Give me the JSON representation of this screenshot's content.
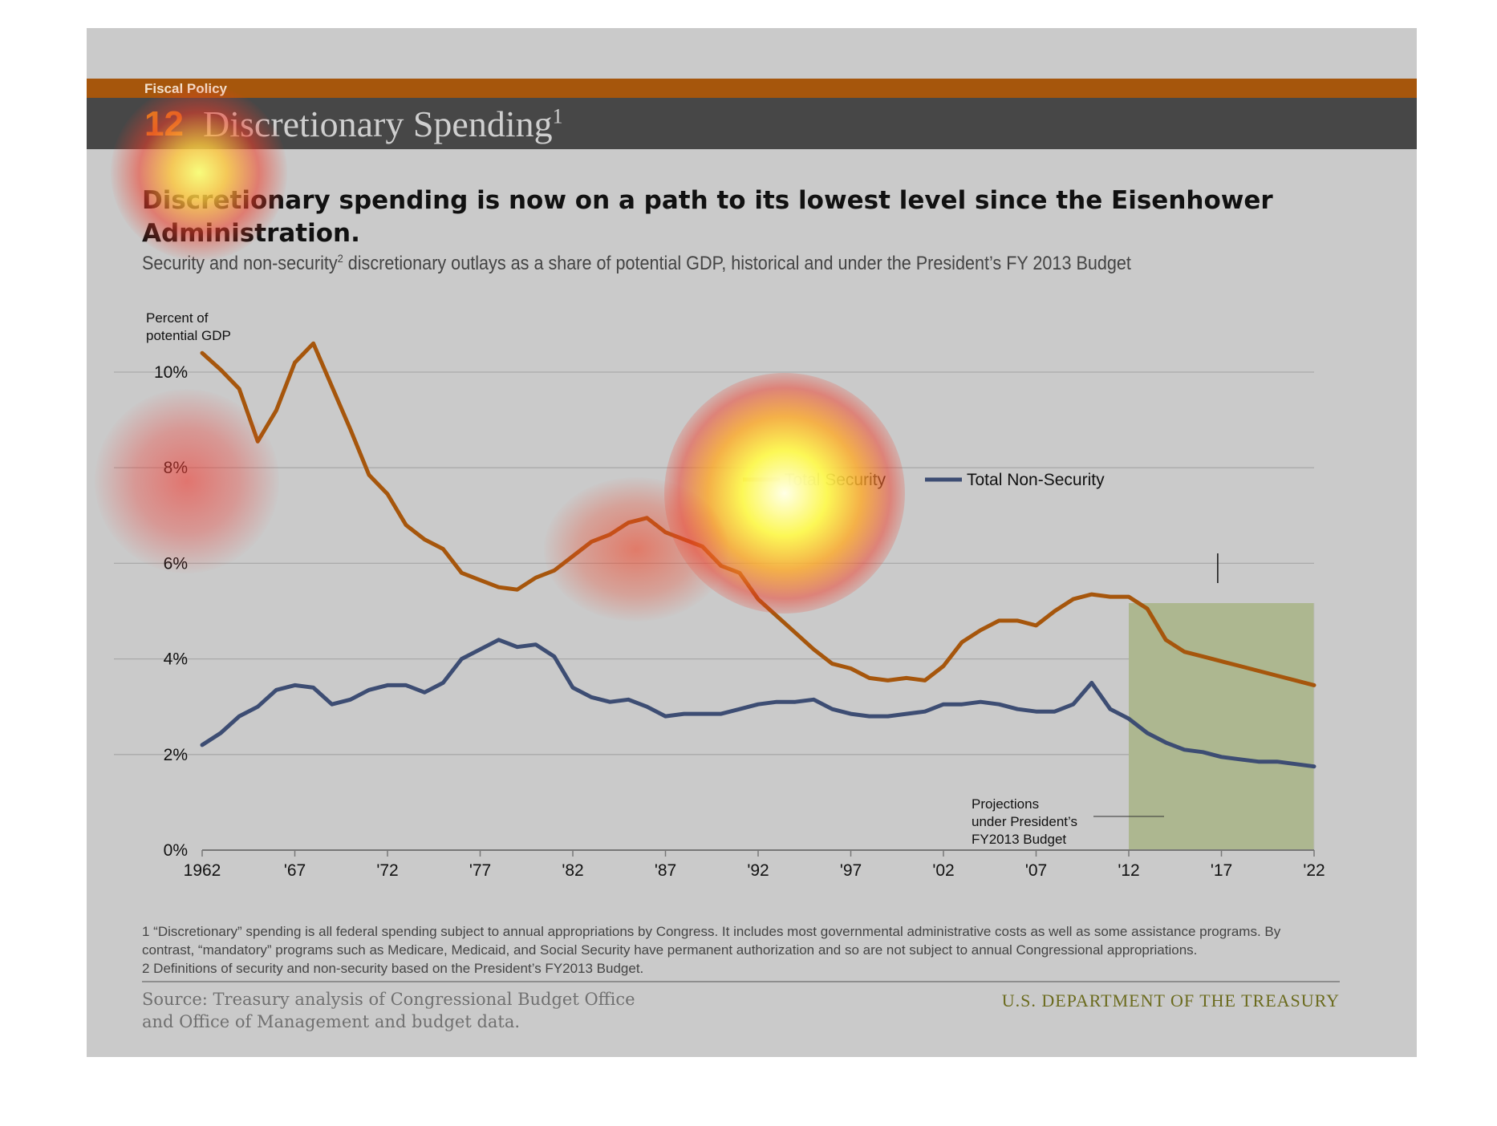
{
  "header": {
    "section": "Fiscal Policy",
    "chapter_number": "12",
    "chapter_title": "Discretionary Spending",
    "chapter_superscript": "1"
  },
  "headline": "Discretionary spending is now on a path to its lowest level since the Eisenhower Administration.",
  "subtitle": {
    "part1": "Security and non-security",
    "sup": "2",
    "part2": " discretionary outlays as a share of potential GDP, historical and under the President’s FY 2013 Budget"
  },
  "footnotes": {
    "line1": "1 “Discretionary” spending is all federal spending subject to annual appropriations by Congress. It includes most governmental administrative costs as well as some assistance programs. By",
    "line2": "contrast, “mandatory” programs such as Medicare, Medicaid, and Social Security have permanent authorization and so are not subject to annual Congressional appropriations.",
    "line3": "2 Definitions of security and non-security based on the President’s FY2013 Budget."
  },
  "source": {
    "line1": "Source: Treasury analysis of Congressional Budget Office",
    "line2": "and Office of Management and budget data."
  },
  "agency": "U.S. DEPARTMENT OF THE TREASURY",
  "colors": {
    "security": "#a6560c",
    "non_security": "#3d4d73",
    "projection_shade": "#adb790"
  },
  "chart_data": {
    "type": "line",
    "ylabel": "Percent of potential GDP",
    "ylabel_lines": [
      "Percent of",
      "potential GDP"
    ],
    "ylim": [
      0,
      11
    ],
    "xlim": [
      1962,
      2022
    ],
    "grid": true,
    "y_ticks": [
      {
        "value": 0,
        "label": "0%"
      },
      {
        "value": 2,
        "label": "2%"
      },
      {
        "value": 4,
        "label": "4%"
      },
      {
        "value": 6,
        "label": "6%"
      },
      {
        "value": 8,
        "label": "8%"
      },
      {
        "value": 10,
        "label": "10%"
      }
    ],
    "x_ticks": [
      {
        "value": 1962,
        "label": "1962"
      },
      {
        "value": 1967,
        "label": "'67"
      },
      {
        "value": 1972,
        "label": "'72"
      },
      {
        "value": 1977,
        "label": "'77"
      },
      {
        "value": 1982,
        "label": "'82"
      },
      {
        "value": 1987,
        "label": "'87"
      },
      {
        "value": 1992,
        "label": "'92"
      },
      {
        "value": 1997,
        "label": "'97"
      },
      {
        "value": 2002,
        "label": "'02"
      },
      {
        "value": 2007,
        "label": "'07"
      },
      {
        "value": 2012,
        "label": "'12"
      },
      {
        "value": 2017,
        "label": "'17"
      },
      {
        "value": 2022,
        "label": "'22"
      }
    ],
    "legend_placement": "upper-center",
    "projection": {
      "start": 2012,
      "end": 2022,
      "label_lines": [
        "Projections",
        "under President’s",
        "FY2013 Budget"
      ]
    },
    "x": [
      1962,
      1963,
      1964,
      1965,
      1966,
      1967,
      1968,
      1969,
      1970,
      1971,
      1972,
      1973,
      1974,
      1975,
      1976,
      1977,
      1978,
      1979,
      1980,
      1981,
      1982,
      1983,
      1984,
      1985,
      1986,
      1987,
      1988,
      1989,
      1990,
      1991,
      1992,
      1993,
      1994,
      1995,
      1996,
      1997,
      1998,
      1999,
      2000,
      2001,
      2002,
      2003,
      2004,
      2005,
      2006,
      2007,
      2008,
      2009,
      2010,
      2011,
      2012,
      2013,
      2014,
      2015,
      2016,
      2017,
      2018,
      2019,
      2020,
      2021,
      2022
    ],
    "series": [
      {
        "name": "Total Security",
        "color": "#a6560c",
        "values": [
          10.4,
          10.05,
          9.65,
          8.55,
          9.2,
          10.2,
          10.6,
          9.7,
          8.8,
          7.85,
          7.45,
          6.8,
          6.5,
          6.3,
          5.8,
          5.65,
          5.5,
          5.45,
          5.7,
          5.85,
          6.15,
          6.45,
          6.6,
          6.85,
          6.95,
          6.65,
          6.5,
          6.35,
          5.95,
          5.8,
          5.25,
          4.9,
          4.55,
          4.2,
          3.9,
          3.8,
          3.6,
          3.55,
          3.6,
          3.55,
          3.85,
          4.35,
          4.6,
          4.8,
          4.8,
          4.7,
          5.0,
          5.25,
          5.35,
          5.3,
          5.3,
          5.05,
          4.4,
          4.15,
          4.05,
          3.95,
          3.85,
          3.75,
          3.65,
          3.55,
          3.45
        ]
      },
      {
        "name": "Total Non-Security",
        "color": "#3d4d73",
        "values": [
          2.2,
          2.45,
          2.8,
          3.0,
          3.35,
          3.45,
          3.4,
          3.05,
          3.15,
          3.35,
          3.45,
          3.45,
          3.3,
          3.5,
          4.0,
          4.2,
          4.4,
          4.25,
          4.3,
          4.05,
          3.4,
          3.2,
          3.1,
          3.15,
          3.0,
          2.8,
          2.85,
          2.85,
          2.85,
          2.95,
          3.05,
          3.1,
          3.1,
          3.15,
          2.95,
          2.85,
          2.8,
          2.8,
          2.85,
          2.9,
          3.05,
          3.05,
          3.1,
          3.05,
          2.95,
          2.9,
          2.9,
          3.05,
          3.5,
          2.95,
          2.75,
          2.45,
          2.25,
          2.1,
          2.05,
          1.95,
          1.9,
          1.85,
          1.85,
          1.8,
          1.75
        ]
      }
    ]
  }
}
